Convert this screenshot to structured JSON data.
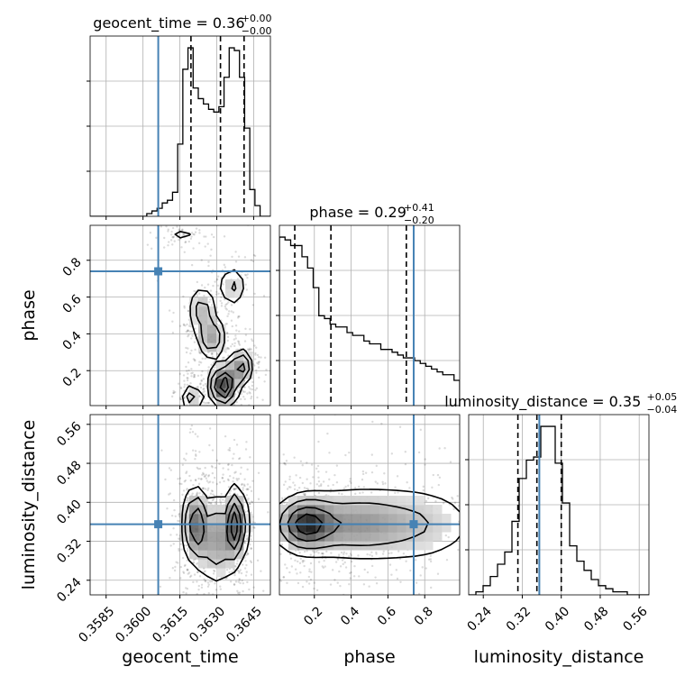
{
  "chart_data": {
    "type": "corner",
    "parameters": [
      "geocent_time",
      "phase",
      "luminosity_distance"
    ],
    "truth_color": "#4682b4",
    "contour_color": "#000000",
    "ranges": {
      "geocent_time": [
        0.35785,
        0.36518
      ],
      "phase": [
        0.01,
        0.99
      ],
      "luminosity_distance": [
        0.21,
        0.58
      ]
    },
    "truths": {
      "geocent_time": 0.36062,
      "phase": 0.74,
      "luminosity_distance": 0.355
    },
    "ticks": {
      "geocent_time": {
        "values": [
          0.3585,
          0.36,
          0.3615,
          0.363,
          0.3645
        ],
        "labels": [
          "0.3585",
          "0.3600",
          "0.3615",
          "0.3630",
          "0.3645"
        ]
      },
      "phase": {
        "values": [
          0.2,
          0.4,
          0.6,
          0.8
        ],
        "labels": [
          "0.2",
          "0.4",
          "0.6",
          "0.8"
        ]
      },
      "luminosity_distance": {
        "values": [
          0.24,
          0.32,
          0.4,
          0.48,
          0.56
        ],
        "labels": [
          "0.24",
          "0.32",
          "0.40",
          "0.48",
          "0.56"
        ]
      }
    },
    "titles": {
      "geocent_time": {
        "text": "geocent_time = 0.36",
        "sup": "+0.00",
        "sub": "−0.00"
      },
      "phase": {
        "text": "phase = 0.29",
        "sup": "+0.41",
        "sub": "−0.20"
      },
      "luminosity_distance": {
        "text": "luminosity_distance = 0.35",
        "sup": "+0.05",
        "sub": "−0.04"
      }
    },
    "axis_labels": {
      "geocent_time": "geocent_time",
      "phase": "phase",
      "luminosity_distance": "luminosity_distance"
    },
    "histograms": {
      "geocent_time": {
        "edges_range": [
          0.35785,
          0.36518
        ],
        "counts": [
          0,
          0,
          0,
          0,
          0,
          0,
          0,
          0,
          0,
          0,
          0,
          1,
          2,
          3,
          5,
          6,
          9,
          27,
          55,
          63,
          48,
          44,
          42,
          40,
          39,
          41,
          52,
          63,
          62,
          52,
          33,
          10,
          4,
          0,
          0
        ],
        "quantiles": [
          0.36195,
          0.36315,
          0.36411
        ]
      },
      "phase": {
        "edges_range": [
          0.01,
          0.99
        ],
        "counts": [
          60,
          59,
          57,
          57,
          53,
          49,
          42,
          32,
          31,
          29,
          28,
          28,
          26,
          25,
          25,
          23,
          22,
          22,
          20,
          20,
          19,
          18,
          17,
          17,
          16,
          15,
          14,
          13,
          12,
          11,
          11,
          9
        ],
        "quantiles": [
          0.0935,
          0.29,
          0.7
        ]
      },
      "luminosity_distance": {
        "edges_range": [
          0.21,
          0.58
        ],
        "counts": [
          0,
          1,
          3,
          6,
          10,
          14,
          24,
          38,
          44,
          45,
          55,
          55,
          43,
          30,
          16,
          11,
          8,
          5,
          3,
          2,
          1,
          1,
          0,
          0,
          0
        ],
        "quantiles": [
          0.311,
          0.35,
          0.4
        ]
      }
    },
    "pair_modes": {
      "phase|geocent_time": [
        {
          "x": 0.36327,
          "y": 0.12,
          "sx": 0.0003,
          "sy": 0.06,
          "w": 3
        },
        {
          "x": 0.36398,
          "y": 0.22,
          "sx": 0.00025,
          "sy": 0.05,
          "w": 2
        },
        {
          "x": 0.36278,
          "y": 0.38,
          "sx": 0.0003,
          "sy": 0.06,
          "w": 1.6
        },
        {
          "x": 0.3624,
          "y": 0.53,
          "sx": 0.0003,
          "sy": 0.07,
          "w": 1.2
        },
        {
          "x": 0.36365,
          "y": 0.66,
          "sx": 0.0003,
          "sy": 0.06,
          "w": 1.0
        },
        {
          "x": 0.362,
          "y": 0.05,
          "sx": 0.0002,
          "sy": 0.04,
          "w": 1.4
        },
        {
          "x": 0.3616,
          "y": 0.93,
          "sx": 0.00035,
          "sy": 0.02,
          "w": 0.6
        }
      ],
      "luminosity_distance|geocent_time": [
        {
          "x": 0.3621,
          "y": 0.355,
          "sx": 0.00022,
          "sy": 0.04,
          "w": 1.6
        },
        {
          "x": 0.3638,
          "y": 0.355,
          "sx": 0.0002,
          "sy": 0.04,
          "w": 1.8
        },
        {
          "x": 0.363,
          "y": 0.325,
          "sx": 0.0005,
          "sy": 0.05,
          "w": 1.0
        }
      ],
      "luminosity_distance|phase": [
        {
          "x": 0.15,
          "y": 0.355,
          "sx": 0.09,
          "sy": 0.03,
          "w": 2.0
        },
        {
          "x": 0.4,
          "y": 0.355,
          "sx": 0.18,
          "sy": 0.04,
          "w": 1.1
        },
        {
          "x": 0.75,
          "y": 0.355,
          "sx": 0.2,
          "sy": 0.045,
          "w": 0.7
        }
      ]
    }
  }
}
